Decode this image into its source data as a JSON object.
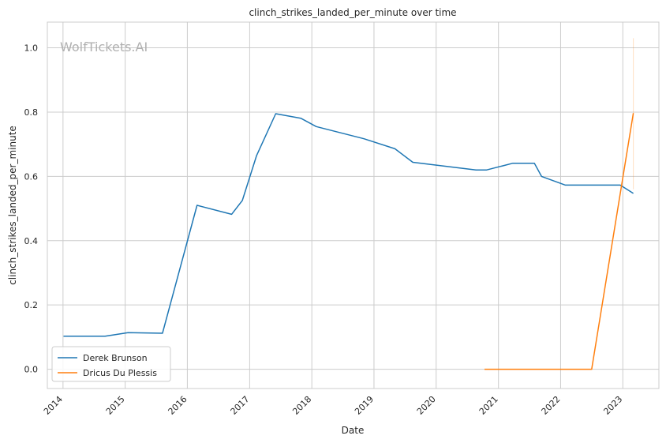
{
  "chart_data": {
    "type": "line",
    "title": "clinch_strikes_landed_per_minute over time",
    "xlabel": "Date",
    "ylabel": "clinch_strikes_landed_per_minute",
    "watermark": "WolfTickets.AI",
    "xlim": [
      "2013-10-01",
      "2023-08-01"
    ],
    "ylim": [
      -0.06,
      1.08
    ],
    "x_ticks": [
      "2014",
      "2015",
      "2016",
      "2017",
      "2018",
      "2019",
      "2020",
      "2021",
      "2022",
      "2023"
    ],
    "y_ticks": [
      "0.0",
      "0.2",
      "0.4",
      "0.6",
      "0.8",
      "1.0"
    ],
    "grid": true,
    "legend_position": "lower-left",
    "series": [
      {
        "name": "Derek Brunson",
        "color": "#1f77b4",
        "points": [
          {
            "x": "2014-01-04",
            "y": 0.103
          },
          {
            "x": "2014-09-05",
            "y": 0.103
          },
          {
            "x": "2015-01-18",
            "y": 0.114
          },
          {
            "x": "2015-08-08",
            "y": 0.112
          },
          {
            "x": "2016-02-27",
            "y": 0.51
          },
          {
            "x": "2016-09-17",
            "y": 0.482
          },
          {
            "x": "2016-11-19",
            "y": 0.525
          },
          {
            "x": "2017-02-11",
            "y": 0.665
          },
          {
            "x": "2017-06-03",
            "y": 0.795
          },
          {
            "x": "2017-10-28",
            "y": 0.781
          },
          {
            "x": "2018-01-27",
            "y": 0.755
          },
          {
            "x": "2018-11-03",
            "y": 0.717
          },
          {
            "x": "2019-05-04",
            "y": 0.686
          },
          {
            "x": "2019-08-17",
            "y": 0.644
          },
          {
            "x": "2020-08-22",
            "y": 0.62
          },
          {
            "x": "2020-10-24",
            "y": 0.62
          },
          {
            "x": "2021-03-27",
            "y": 0.641
          },
          {
            "x": "2021-07-31",
            "y": 0.641
          },
          {
            "x": "2021-09-11",
            "y": 0.6
          },
          {
            "x": "2022-01-29",
            "y": 0.573
          },
          {
            "x": "2022-12-17",
            "y": 0.573
          },
          {
            "x": "2023-03-04",
            "y": 0.547
          }
        ]
      },
      {
        "name": "Dricus Du Plessis",
        "color": "#ff7f0e",
        "points": [
          {
            "x": "2020-10-11",
            "y": 0.0
          },
          {
            "x": "2022-07-02",
            "y": 0.0
          },
          {
            "x": "2023-03-04",
            "y": 0.797
          }
        ],
        "error_band": {
          "x": "2023-03-04",
          "low": 0.56,
          "high": 1.03
        }
      }
    ]
  }
}
